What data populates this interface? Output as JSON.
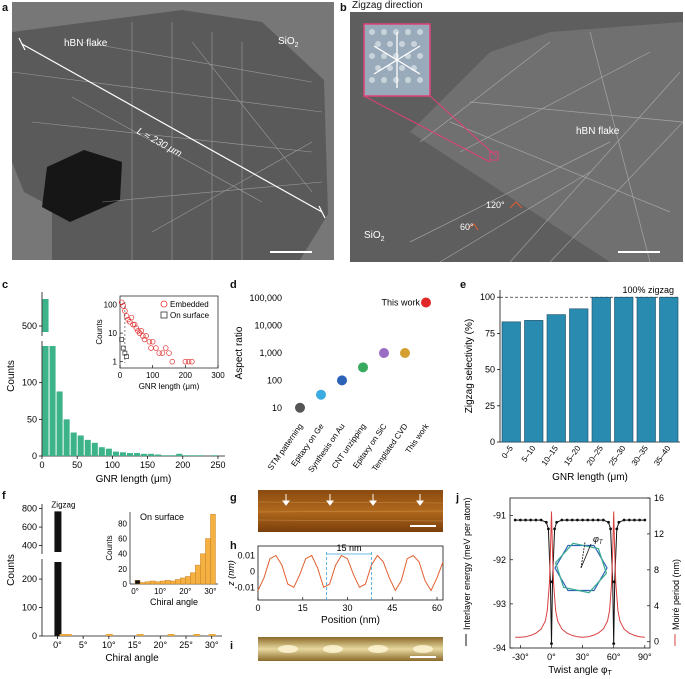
{
  "panels": {
    "a": {
      "label": "a",
      "hbn": "hBN flake",
      "sio2": "SiO",
      "sio2_sub": "2",
      "length": "L ≈ 230 μm"
    },
    "b": {
      "label": "b",
      "zigzag_direction": "Zigzag direction",
      "hbn": "hBN flake",
      "sio2": "SiO",
      "sio2_sub": "2",
      "angle120": "120°",
      "angle60": "60°"
    },
    "c": {
      "label": "c"
    },
    "d": {
      "label": "d"
    },
    "e": {
      "label": "e"
    },
    "f": {
      "label": "f"
    },
    "g": {
      "label": "g"
    },
    "h": {
      "label": "h"
    },
    "i": {
      "label": "i"
    },
    "j": {
      "label": "j"
    }
  },
  "chart_data": [
    {
      "id": "c",
      "type": "bar",
      "xlabel": "GNR length (μm)",
      "ylabel": "Counts",
      "bin_width": 10,
      "x": [
        0,
        10,
        20,
        30,
        40,
        50,
        60,
        70,
        80,
        90,
        100,
        110,
        120,
        130,
        140,
        150,
        160,
        170,
        180,
        190,
        200,
        210,
        220,
        230,
        240,
        250
      ],
      "values": [
        590,
        150,
        88,
        50,
        32,
        28,
        22,
        18,
        12,
        10,
        6,
        5,
        4,
        4,
        3,
        3,
        2,
        1,
        1,
        3,
        1,
        1,
        1,
        0,
        1,
        0
      ],
      "ylim_lower": [
        0,
        150
      ],
      "ylim_upper": [
        480,
        600
      ],
      "yticks_lower": [
        "0",
        "50",
        "100"
      ],
      "yticks_upper": [
        "500"
      ],
      "xticks": [
        "0",
        "50",
        "100",
        "150",
        "200",
        "250"
      ],
      "xlim": [
        0,
        260
      ],
      "inset": {
        "type": "scatter",
        "xlabel": "GNR length (μm)",
        "ylabel": "Counts",
        "yscale": "log",
        "xticks": [
          "0",
          "100",
          "200",
          "300"
        ],
        "yticks": [
          "1",
          "10",
          "100"
        ],
        "xlim": [
          0,
          300
        ],
        "ylim": [
          0.6,
          200
        ],
        "series": [
          {
            "name": "Embedded",
            "marker": "circle",
            "color": "#e03030",
            "x": [
              5,
              10,
              15,
              20,
              25,
              30,
              35,
              40,
              45,
              50,
              55,
              60,
              65,
              70,
              75,
              80,
              90,
              95,
              100,
              110,
              120,
              130,
              140,
              150,
              160,
              200,
              210,
              220
            ],
            "y": [
              120,
              90,
              60,
              40,
              30,
              25,
              35,
              20,
              20,
              15,
              12,
              10,
              12,
              8,
              6,
              8,
              5,
              3,
              5,
              3,
              2,
              2,
              3,
              2,
              1,
              1,
              1,
              1
            ]
          },
          {
            "name": "On surface",
            "marker": "square",
            "color": "#333333",
            "x": [
              5,
              10,
              15,
              20
            ],
            "y": [
              6,
              3,
              2,
              1.5
            ]
          }
        ]
      }
    },
    {
      "id": "d",
      "type": "scatter",
      "ylabel": "Aspect ratio",
      "yscale": "log",
      "yticks": [
        "10",
        "100",
        "1,000",
        "10,000",
        "100,000"
      ],
      "ylim": [
        5,
        200000
      ],
      "categories": [
        "STM patterning",
        "Epitaxy on Ge",
        "Synthesis on Au",
        "CNT unzipping",
        "Epitaxy on SiC",
        "Templated CVD",
        "This work"
      ],
      "values": [
        10,
        30,
        100,
        300,
        1000,
        1000,
        70000
      ],
      "colors": [
        "#555555",
        "#3aabe0",
        "#2c62b8",
        "#3aaa60",
        "#9b6cc4",
        "#d4a030",
        "#e02828"
      ],
      "annotation": "This work"
    },
    {
      "id": "e",
      "type": "bar",
      "xlabel": "GNR length (μm)",
      "ylabel": "Zigzag selectivity (%)",
      "categories": [
        "0–5",
        "5–10",
        "10–15",
        "15–20",
        "20–25",
        "25–30",
        "30–35",
        "35–40"
      ],
      "values": [
        83,
        84,
        88,
        92,
        100,
        100,
        100,
        100
      ],
      "ylim": [
        0,
        105
      ],
      "yticks": [
        "0",
        "25",
        "50",
        "75",
        "100"
      ],
      "annotation": "100% zigzag",
      "color": "#2a8bb0"
    },
    {
      "id": "f",
      "type": "bar",
      "xlabel": "Chiral angle",
      "ylabel": "Counts",
      "xticks": [
        "0°",
        "5°",
        "10°",
        "15°",
        "20°",
        "25°",
        "30°"
      ],
      "yticks_lower": [
        "0",
        "100",
        "200"
      ],
      "yticks_upper": [
        "400",
        "600",
        "800"
      ],
      "values_note": "Zigzag",
      "x": [
        0,
        1,
        2,
        10,
        16,
        22,
        27,
        30
      ],
      "values": [
        770,
        2,
        1,
        1,
        1,
        1,
        1,
        2
      ],
      "inset": {
        "type": "bar",
        "title": "On surface",
        "xlabel": "Chiral angle",
        "ylabel": "Counts",
        "xticks": [
          "0°",
          "10°",
          "20°",
          "30°"
        ],
        "yticks": [
          "0",
          "20",
          "40",
          "60",
          "80"
        ],
        "x": [
          1,
          3,
          5,
          7,
          9,
          11,
          13,
          15,
          17,
          19,
          21,
          23,
          25,
          27,
          29,
          31
        ],
        "values": [
          5,
          2,
          3,
          4,
          3,
          4,
          5,
          4,
          6,
          8,
          10,
          15,
          25,
          40,
          60,
          92
        ],
        "ylim": [
          0,
          95
        ]
      }
    },
    {
      "id": "h",
      "type": "line",
      "xlabel": "Position (nm)",
      "ylabel": "z (nm)",
      "xticks": [
        "0",
        "15",
        "30",
        "45",
        "60"
      ],
      "yticks": [
        "0.01",
        "0",
        "-0.01"
      ],
      "xlim": [
        0,
        62
      ],
      "ylim": [
        -0.018,
        0.016
      ],
      "annotation": "15 nm",
      "x": [
        0,
        2,
        4,
        6,
        8,
        10,
        12,
        14,
        16,
        18,
        20,
        22,
        24,
        26,
        28,
        30,
        32,
        34,
        36,
        38,
        40,
        42,
        44,
        46,
        48,
        50,
        52,
        54,
        56,
        58,
        60,
        62
      ],
      "y": [
        -0.012,
        -0.004,
        0.008,
        0.01,
        0.004,
        -0.008,
        -0.01,
        -0.002,
        0.008,
        0.01,
        0.002,
        -0.01,
        -0.008,
        0.004,
        0.01,
        0.008,
        -0.002,
        -0.01,
        -0.008,
        0.004,
        0.01,
        0.006,
        -0.004,
        -0.012,
        -0.006,
        0.008,
        0.01,
        0.006,
        -0.006,
        -0.012,
        -0.004,
        0.006
      ]
    },
    {
      "id": "j",
      "type": "line",
      "xlabel": "Twist angle φ",
      "xlabel_sub": "T",
      "ylabel_left": "Interlayer energy (meV per atom)",
      "ylabel_right": "Moiré period (nm)",
      "xticks": [
        "-30°",
        "0°",
        "30°",
        "60°",
        "90°"
      ],
      "yticks_left": [
        "-91",
        "-92",
        "-93",
        "-94"
      ],
      "yticks_right": [
        "0",
        "4",
        "8",
        "12",
        "16"
      ],
      "xlim": [
        -40,
        95
      ],
      "ylim_left": [
        -94,
        -90.6
      ],
      "ylim_right": [
        -0.7,
        16
      ],
      "inset_label": "φ",
      "inset_label_sub": "T",
      "series": [
        {
          "name": "Interlayer energy",
          "axis": "left",
          "color": "#111111",
          "x": [
            -35,
            -30,
            -25,
            -20,
            -15,
            -10,
            -5,
            -3,
            -1,
            0,
            1,
            3,
            5,
            10,
            15,
            20,
            25,
            30,
            35,
            40,
            45,
            50,
            55,
            57,
            59,
            60,
            61,
            63,
            65,
            70,
            75,
            80,
            85,
            90
          ],
          "y": [
            -91.1,
            -91.1,
            -91.1,
            -91.1,
            -91.1,
            -91.1,
            -91.15,
            -91.3,
            -92.5,
            -93.9,
            -92.5,
            -91.3,
            -91.15,
            -91.1,
            -91.1,
            -91.1,
            -91.1,
            -91.1,
            -91.1,
            -91.1,
            -91.1,
            -91.1,
            -91.15,
            -91.3,
            -92.5,
            -93.9,
            -92.5,
            -91.3,
            -91.15,
            -91.1,
            -91.1,
            -91.1,
            -91.1,
            -91.1
          ]
        },
        {
          "name": "Moiré period",
          "axis": "right",
          "color": "#d84040",
          "x": [
            -35,
            -30,
            -25,
            -20,
            -15,
            -10,
            -6,
            -4,
            -2,
            -1,
            0,
            1,
            2,
            4,
            6,
            10,
            15,
            20,
            25,
            30,
            35,
            40,
            45,
            50,
            54,
            56,
            58,
            59,
            60,
            61,
            62,
            64,
            66,
            70,
            75,
            80,
            85,
            90
          ],
          "y": [
            0.5,
            0.5,
            0.55,
            0.7,
            0.95,
            1.4,
            2.3,
            3.5,
            6.5,
            10,
            14.5,
            10,
            6.5,
            3.5,
            2.3,
            1.4,
            0.95,
            0.7,
            0.55,
            0.5,
            0.55,
            0.7,
            0.95,
            1.4,
            2.3,
            3.5,
            6.5,
            10,
            14.5,
            10,
            6.5,
            3.5,
            2.3,
            1.4,
            0.95,
            0.7,
            0.55,
            0.5
          ]
        }
      ]
    }
  ]
}
